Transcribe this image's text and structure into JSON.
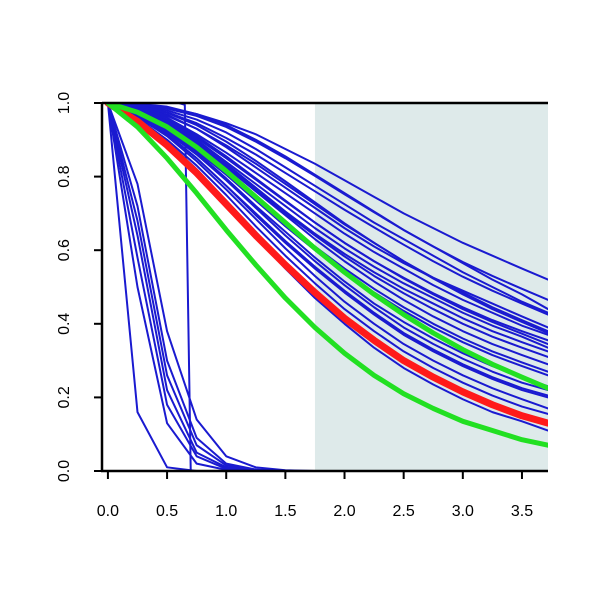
{
  "chart_data": {
    "type": "line",
    "title": "",
    "xlabel": "",
    "ylabel": "",
    "xlim": [
      -0.05,
      3.72
    ],
    "ylim": [
      0.0,
      1.0
    ],
    "x_ticks": [
      {
        "value": 0.0,
        "label": "0.0"
      },
      {
        "value": 0.5,
        "label": "0.5"
      },
      {
        "value": 1.0,
        "label": "1.0"
      },
      {
        "value": 1.5,
        "label": "1.5"
      },
      {
        "value": 2.0,
        "label": "2.0"
      },
      {
        "value": 2.5,
        "label": "2.5"
      },
      {
        "value": 3.0,
        "label": "3.0"
      },
      {
        "value": 3.5,
        "label": "3.5"
      }
    ],
    "y_ticks": [
      {
        "value": 0.0,
        "label": "0.0"
      },
      {
        "value": 0.2,
        "label": "0.2"
      },
      {
        "value": 0.4,
        "label": "0.4"
      },
      {
        "value": 0.6,
        "label": "0.6"
      },
      {
        "value": 0.8,
        "label": "0.8"
      },
      {
        "value": 1.0,
        "label": "1.0"
      }
    ],
    "shaded_region": {
      "x_from": 1.75,
      "x_to": 3.72,
      "color": "#deeaea"
    },
    "colors": {
      "blue": "#1a1ad0",
      "green": "#22e022",
      "red": "#ff1a1a",
      "axis": "#000000"
    },
    "x": [
      0.0,
      0.25,
      0.5,
      0.75,
      1.0,
      1.25,
      1.5,
      1.75,
      2.0,
      2.25,
      2.5,
      2.75,
      3.0,
      3.25,
      3.5,
      3.72
    ],
    "series": [
      {
        "color": "blue",
        "width": 2,
        "values": [
          1.0,
          0.992,
          0.968,
          0.93,
          0.88,
          0.825,
          0.77,
          0.715,
          0.66,
          0.61,
          0.565,
          0.525,
          0.49,
          0.455,
          0.42,
          0.39
        ]
      },
      {
        "color": "blue",
        "width": 2,
        "values": [
          1.0,
          0.995,
          0.98,
          0.955,
          0.92,
          0.875,
          0.825,
          0.775,
          0.725,
          0.675,
          0.63,
          0.585,
          0.54,
          0.5,
          0.46,
          0.43
        ]
      },
      {
        "color": "blue",
        "width": 2,
        "values": [
          1.0,
          0.998,
          0.99,
          0.97,
          0.94,
          0.9,
          0.855,
          0.805,
          0.755,
          0.705,
          0.655,
          0.61,
          0.565,
          0.52,
          0.48,
          0.44
        ]
      },
      {
        "color": "blue",
        "width": 2,
        "values": [
          1.0,
          0.99,
          0.96,
          0.915,
          0.865,
          0.81,
          0.755,
          0.7,
          0.645,
          0.595,
          0.55,
          0.505,
          0.465,
          0.43,
          0.395,
          0.37
        ]
      },
      {
        "color": "blue",
        "width": 2,
        "values": [
          1.0,
          0.985,
          0.95,
          0.9,
          0.84,
          0.78,
          0.72,
          0.66,
          0.605,
          0.555,
          0.51,
          0.47,
          0.43,
          0.395,
          0.365,
          0.335
        ]
      },
      {
        "color": "blue",
        "width": 2,
        "values": [
          1.0,
          0.982,
          0.945,
          0.895,
          0.835,
          0.77,
          0.705,
          0.645,
          0.59,
          0.54,
          0.495,
          0.455,
          0.415,
          0.38,
          0.35,
          0.325
        ]
      },
      {
        "color": "blue",
        "width": 2,
        "values": [
          1.0,
          0.99,
          0.965,
          0.93,
          0.885,
          0.835,
          0.78,
          0.725,
          0.67,
          0.62,
          0.57,
          0.525,
          0.485,
          0.445,
          0.41,
          0.38
        ]
      },
      {
        "color": "blue",
        "width": 2,
        "values": [
          1.0,
          0.975,
          0.935,
          0.88,
          0.815,
          0.745,
          0.675,
          0.61,
          0.55,
          0.495,
          0.445,
          0.4,
          0.36,
          0.325,
          0.295,
          0.27
        ]
      },
      {
        "color": "blue",
        "width": 2,
        "values": [
          1.0,
          0.97,
          0.925,
          0.865,
          0.795,
          0.72,
          0.65,
          0.58,
          0.515,
          0.455,
          0.405,
          0.36,
          0.32,
          0.285,
          0.255,
          0.23
        ]
      },
      {
        "color": "blue",
        "width": 2,
        "values": [
          1.0,
          0.965,
          0.915,
          0.85,
          0.775,
          0.695,
          0.62,
          0.55,
          0.485,
          0.425,
          0.37,
          0.325,
          0.285,
          0.25,
          0.22,
          0.2
        ]
      },
      {
        "color": "blue",
        "width": 2,
        "values": [
          1.0,
          0.965,
          0.915,
          0.85,
          0.775,
          0.7,
          0.625,
          0.555,
          0.49,
          0.43,
          0.375,
          0.33,
          0.29,
          0.255,
          0.225,
          0.205
        ]
      },
      {
        "color": "blue",
        "width": 2,
        "values": [
          1.0,
          0.97,
          0.925,
          0.87,
          0.805,
          0.735,
          0.665,
          0.6,
          0.54,
          0.485,
          0.435,
          0.39,
          0.35,
          0.315,
          0.285,
          0.26
        ]
      },
      {
        "color": "blue",
        "width": 2,
        "values": [
          1.0,
          0.958,
          0.9,
          0.83,
          0.75,
          0.665,
          0.585,
          0.51,
          0.44,
          0.38,
          0.325,
          0.28,
          0.24,
          0.205,
          0.175,
          0.155
        ]
      },
      {
        "color": "blue",
        "width": 2,
        "values": [
          1.0,
          0.955,
          0.895,
          0.82,
          0.735,
          0.65,
          0.565,
          0.49,
          0.42,
          0.355,
          0.3,
          0.255,
          0.215,
          0.18,
          0.15,
          0.125
        ]
      },
      {
        "color": "blue",
        "width": 2,
        "values": [
          1.0,
          0.952,
          0.89,
          0.81,
          0.725,
          0.635,
          0.55,
          0.47,
          0.4,
          0.335,
          0.28,
          0.235,
          0.195,
          0.16,
          0.135,
          0.11
        ]
      },
      {
        "color": "blue",
        "width": 2,
        "values": [
          1.0,
          0.987,
          0.955,
          0.91,
          0.855,
          0.795,
          0.735,
          0.675,
          0.62,
          0.57,
          0.525,
          0.483,
          0.445,
          0.41,
          0.38,
          0.355
        ]
      },
      {
        "color": "blue",
        "width": 2,
        "values": [
          1.0,
          0.98,
          0.94,
          0.89,
          0.83,
          0.765,
          0.7,
          0.64,
          0.583,
          0.53,
          0.483,
          0.44,
          0.4,
          0.365,
          0.335,
          0.31
        ]
      },
      {
        "color": "blue",
        "width": 2,
        "values": [
          1.0,
          0.985,
          0.95,
          0.905,
          0.85,
          0.792,
          0.733,
          0.675,
          0.62,
          0.57,
          0.523,
          0.48,
          0.44,
          0.405,
          0.373,
          0.345
        ]
      },
      {
        "color": "blue",
        "width": 2,
        "values": [
          1.0,
          0.968,
          0.92,
          0.86,
          0.79,
          0.715,
          0.64,
          0.57,
          0.505,
          0.445,
          0.39,
          0.345,
          0.305,
          0.27,
          0.24,
          0.22
        ]
      },
      {
        "color": "blue",
        "width": 2,
        "values": [
          1.0,
          0.962,
          0.91,
          0.842,
          0.765,
          0.685,
          0.605,
          0.53,
          0.46,
          0.4,
          0.345,
          0.3,
          0.26,
          0.225,
          0.195,
          0.17
        ]
      },
      {
        "color": "blue",
        "width": 2,
        "values": [
          1.0,
          0.975,
          0.935,
          0.885,
          0.825,
          0.76,
          0.695,
          0.63,
          0.57,
          0.515,
          0.465,
          0.42,
          0.38,
          0.345,
          0.315,
          0.29
        ]
      },
      {
        "color": "blue",
        "width": 2,
        "values": [
          1.0,
          0.993,
          0.975,
          0.945,
          0.905,
          0.86,
          0.81,
          0.76,
          0.71,
          0.662,
          0.615,
          0.57,
          0.528,
          0.49,
          0.455,
          0.425
        ]
      },
      {
        "color": "blue",
        "width": 2,
        "values": [
          1.0,
          0.996,
          0.985,
          0.965,
          0.935,
          0.895,
          0.85,
          0.802,
          0.752,
          0.703,
          0.655,
          0.61,
          0.568,
          0.53,
          0.495,
          0.465
        ]
      },
      {
        "color": "blue",
        "width": 2,
        "values": [
          1.0,
          0.997,
          0.988,
          0.97,
          0.945,
          0.915,
          0.875,
          0.835,
          0.79,
          0.745,
          0.7,
          0.66,
          0.62,
          0.585,
          0.55,
          0.52
        ]
      },
      {
        "color": "blue",
        "width": 2,
        "values": [
          1.0,
          0.993,
          0.973,
          0.94,
          0.895,
          0.843,
          0.787,
          0.73,
          0.673,
          0.62,
          0.57,
          0.523,
          0.48,
          0.44,
          0.405,
          0.375
        ]
      },
      {
        "color": "blue",
        "width": 2,
        "values": [
          1.0,
          0.78,
          0.38,
          0.14,
          0.04,
          0.01,
          0.002,
          0.0,
          0.0,
          0.0,
          0.0,
          0.0,
          0.0,
          0.0,
          0.0,
          0.0
        ]
      },
      {
        "color": "blue",
        "width": 2,
        "values": [
          1.0,
          0.72,
          0.3,
          0.09,
          0.02,
          0.004,
          0.0,
          0.0,
          0.0,
          0.0,
          0.0,
          0.0,
          0.0,
          0.0,
          0.0,
          0.0
        ]
      },
      {
        "color": "blue",
        "width": 2,
        "values": [
          1.0,
          0.64,
          0.22,
          0.05,
          0.01,
          0.002,
          0.0,
          0.0,
          0.0,
          0.0,
          0.0,
          0.0,
          0.0,
          0.0,
          0.0,
          0.0
        ]
      },
      {
        "color": "blue",
        "width": 2,
        "values": [
          1.0,
          0.58,
          0.18,
          0.04,
          0.006,
          0.001,
          0.0,
          0.0,
          0.0,
          0.0,
          0.0,
          0.0,
          0.0,
          0.0,
          0.0,
          0.0
        ]
      },
      {
        "color": "blue",
        "width": 2,
        "values": [
          1.0,
          0.5,
          0.13,
          0.02,
          0.003,
          0.0,
          0.0,
          0.0,
          0.0,
          0.0,
          0.0,
          0.0,
          0.0,
          0.0,
          0.0,
          0.0
        ]
      },
      {
        "color": "blue",
        "width": 2,
        "values": [
          1.0,
          0.68,
          0.26,
          0.07,
          0.015,
          0.003,
          0.0,
          0.0,
          0.0,
          0.0,
          0.0,
          0.0,
          0.0,
          0.0,
          0.0,
          0.0
        ]
      },
      {
        "color": "blue",
        "width": 2,
        "values": [
          1.0,
          0.16,
          0.01,
          0.0,
          0.0,
          0.0,
          0.0,
          0.0,
          0.0,
          0.0,
          0.0,
          0.0,
          0.0,
          0.0,
          0.0,
          0.0
        ]
      },
      {
        "color": "blue",
        "width": 2,
        "x": [
          -0.01,
          0.0,
          0.6,
          0.65,
          0.67,
          0.7,
          3.72
        ],
        "values": [
          1.0,
          1.0,
          1.0,
          0.995,
          0.6,
          0.0,
          0.0
        ]
      },
      {
        "color": "red",
        "width": 7,
        "values": [
          1.0,
          0.95,
          0.885,
          0.81,
          0.725,
          0.64,
          0.56,
          0.485,
          0.415,
          0.355,
          0.3,
          0.255,
          0.215,
          0.18,
          0.15,
          0.13
        ]
      },
      {
        "color": "green",
        "width": 5,
        "values": [
          1.0,
          0.975,
          0.935,
          0.88,
          0.815,
          0.745,
          0.675,
          0.605,
          0.54,
          0.48,
          0.425,
          0.375,
          0.33,
          0.29,
          0.255,
          0.225
        ]
      },
      {
        "color": "green",
        "width": 5,
        "values": [
          1.0,
          0.935,
          0.85,
          0.755,
          0.655,
          0.56,
          0.47,
          0.39,
          0.32,
          0.26,
          0.21,
          0.17,
          0.135,
          0.11,
          0.085,
          0.07
        ]
      }
    ]
  }
}
